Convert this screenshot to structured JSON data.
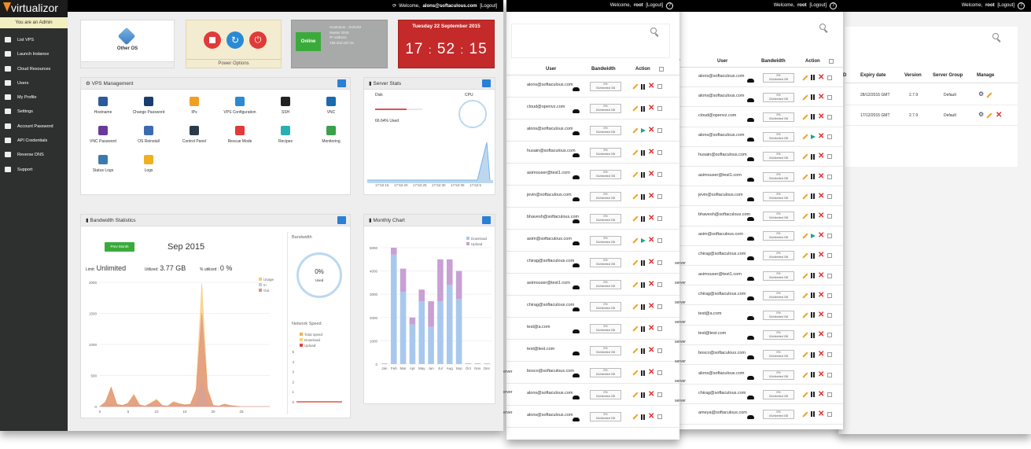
{
  "app": {
    "logo_text": "virtualizor",
    "admin_notice": "You are an Admin",
    "welcome_prefix": "Welcome,",
    "user_email": "alons@softaculous.com",
    "logout": "[Logout]",
    "root_user": "root",
    "logout_alt": "[Logout]",
    "help": "?"
  },
  "sidebar": {
    "items": [
      {
        "label": "List VPS",
        "icon": "monitor-icon"
      },
      {
        "label": "Launch Instance",
        "icon": "cloud-upload-icon"
      },
      {
        "label": "Cloud Resources",
        "icon": "bar-chart-icon"
      },
      {
        "label": "Users",
        "icon": "users-icon"
      },
      {
        "label": "My Profile",
        "icon": "profile-icon"
      },
      {
        "label": "Settings",
        "icon": "wrench-icon"
      },
      {
        "label": "Account Password",
        "icon": "lock-icon"
      },
      {
        "label": "API Credentials",
        "icon": "gears-icon"
      },
      {
        "label": "Reverse DNS",
        "icon": "gears-icon"
      },
      {
        "label": "Support",
        "icon": "question-icon"
      }
    ]
  },
  "dashboard": {
    "os_label": "Other OS",
    "power_label": "Power Options",
    "status": "Online",
    "host_info": [
      "Hostname : SoluVM",
      "Master DNS",
      "IP Address",
      "198.204.187.91"
    ],
    "clock_date": "Tuesday 22 September 2015",
    "clock_h": "17",
    "clock_m": "52",
    "clock_s": "15",
    "clock_sep": ":",
    "vps_mgmt_title": "VPS Management",
    "vps_tools": [
      {
        "label": "Hostname",
        "color": "#2a5a9a"
      },
      {
        "label": "Change Password",
        "color": "#1a3d6e"
      },
      {
        "label": "IPs",
        "color": "#f0a020"
      },
      {
        "label": "VPS Configuration",
        "color": "#2a8ad6"
      },
      {
        "label": "SSH",
        "color": "#222222"
      },
      {
        "label": "VNC",
        "color": "#1a6ab0"
      },
      {
        "label": "VNC Password",
        "color": "#6a3a9a"
      },
      {
        "label": "OS Reinstall",
        "color": "#3a6ab0"
      },
      {
        "label": "Control Panel",
        "color": "#2a3a4a"
      },
      {
        "label": "Rescue Mode",
        "color": "#e03a3a"
      },
      {
        "label": "Recipes",
        "color": "#2ab0b0"
      },
      {
        "label": "Monitoring",
        "color": "#3aa04a"
      },
      {
        "label": "Status Logs",
        "color": "#3a7ab0"
      },
      {
        "label": "Logs",
        "color": "#f0b020"
      }
    ],
    "server_stats_title": "Server Stats",
    "disk_label": "Disk",
    "cpu_label": "CPU",
    "disk_used": "66.64% Used",
    "disk_fraction": 0.6664,
    "server_times": [
      "17:52:15",
      "17:52:20",
      "17:52:25",
      "17:52:30",
      "17:52:35",
      "17:52:5"
    ],
    "bw_title": "Bandwidth Statistics",
    "bw_button": "Prev Month",
    "bw_month": "Sep 2015",
    "bw_limit_label": "Limit:",
    "bw_limit": "Unlimited",
    "bw_utilized_label": "Utilized:",
    "bw_utilized": "3.77 GB",
    "bw_pct_label": "% utilized :",
    "bw_pct": "0 %",
    "bw_side_title": "Bandwidth",
    "bw_gauge": "0%",
    "bw_gauge_sub": "Used",
    "net_speed_title": "Network Speed",
    "monthly_title": "Monthly Chart",
    "icons": {
      "expand": "expand-icon",
      "gauge": "gauge-icon"
    }
  },
  "chart_data": [
    {
      "type": "area",
      "title": "",
      "ylim": [
        0,
        2000
      ],
      "yticks": [
        "2000",
        "1500",
        "1000",
        "500",
        "0"
      ],
      "xticks": [
        "0",
        "5",
        "10",
        "15",
        "20",
        "25"
      ],
      "x": [
        0,
        1,
        2,
        3,
        4,
        5,
        6,
        7,
        8,
        9,
        10,
        11,
        12,
        13,
        14,
        15,
        16,
        17,
        18,
        19,
        20,
        21,
        22,
        23,
        24,
        25,
        26,
        27,
        28,
        29,
        30
      ],
      "legend": [
        "Usage",
        "In",
        "Out"
      ],
      "series": [
        {
          "name": "Usage",
          "color": "#f5c97a",
          "values": [
            0,
            80,
            320,
            40,
            20,
            60,
            200,
            30,
            10,
            60,
            120,
            20,
            10,
            80,
            50,
            30,
            40,
            280,
            1980,
            300,
            20,
            10,
            40,
            20,
            10,
            0,
            0,
            0,
            0,
            0,
            0
          ]
        },
        {
          "name": "In",
          "color": "#b9cde8",
          "values": [
            0,
            10,
            20,
            5,
            5,
            10,
            20,
            5,
            5,
            10,
            20,
            5,
            5,
            10,
            10,
            5,
            5,
            30,
            420,
            40,
            5,
            5,
            5,
            5,
            5,
            0,
            0,
            0,
            0,
            0,
            0
          ]
        },
        {
          "name": "Out",
          "color": "#e0917a",
          "values": [
            0,
            70,
            300,
            35,
            15,
            50,
            180,
            25,
            5,
            50,
            100,
            15,
            5,
            70,
            40,
            25,
            35,
            250,
            1500,
            260,
            15,
            5,
            35,
            15,
            5,
            0,
            0,
            0,
            0,
            0,
            0
          ]
        }
      ]
    },
    {
      "type": "line",
      "title": "",
      "ylim": [
        0,
        5
      ],
      "yticks": [
        "5",
        "4",
        "3",
        "2",
        "1",
        "0"
      ],
      "legend": [
        "Total speed",
        "Download",
        "Upload"
      ],
      "series": [
        {
          "name": "Total speed",
          "color": "#f5b04a",
          "values": [
            0,
            0,
            0,
            0
          ]
        },
        {
          "name": "Download",
          "color": "#f5d27a",
          "values": [
            0,
            0,
            0,
            0
          ]
        },
        {
          "name": "Upload",
          "color": "#d44",
          "values": [
            0,
            0,
            0,
            0
          ]
        }
      ]
    },
    {
      "type": "bar",
      "title": "",
      "categories": [
        "Jan",
        "Feb",
        "Mar",
        "Apr",
        "May",
        "Jun",
        "Jul",
        "Aug",
        "Sep",
        "Oct",
        "Nov",
        "Dec"
      ],
      "ylim": [
        0,
        5000
      ],
      "yticks": [
        "5000",
        "4000",
        "3000",
        "2000",
        "1000",
        "0"
      ],
      "legend": [
        "Download",
        "Upload"
      ],
      "series": [
        {
          "name": "Download",
          "color": "#a8c8ee",
          "values": [
            0,
            4700,
            3100,
            1700,
            2700,
            1600,
            2700,
            3400,
            2800,
            0,
            0,
            0
          ]
        },
        {
          "name": "Upload",
          "color": "#c8a0d4",
          "values": [
            0,
            300,
            1000,
            300,
            500,
            1100,
            1800,
            1100,
            1200,
            0,
            0,
            0
          ]
        }
      ]
    }
  ],
  "list1": {
    "headers": [
      "User",
      "Bandwidth",
      "Action"
    ],
    "bw_line1": "0%",
    "bw_line2": "0/Unlimited GB",
    "rows": [
      {
        "user": "alons@softaculous.com",
        "play": false
      },
      {
        "user": "cloud@openvz.com",
        "play": false
      },
      {
        "user": "alons@softaculous.com",
        "play": true
      },
      {
        "user": "husain@softaculous.com",
        "play": false
      },
      {
        "user": "asimouser@test1.com",
        "play": false
      },
      {
        "user": "jevin@softaculous.com",
        "play": false
      },
      {
        "user": "bhavesh@softaculous.com",
        "play": false
      },
      {
        "user": "asim@softaculous.com",
        "play": true
      },
      {
        "user": "chirag@softaculous.com",
        "play": false
      },
      {
        "user": "asimouser@test1.com",
        "play": false
      },
      {
        "user": "chirag@softaculous.com",
        "play": false
      },
      {
        "user": "test@a.com",
        "play": false
      },
      {
        "user": "test@test.com",
        "play": false
      },
      {
        "user": "bosco@softaculous.com",
        "play": false
      },
      {
        "user": "alons@softaculous.com",
        "play": false
      },
      {
        "user": "alons@softaculous.com",
        "play": false
      }
    ],
    "server_tags": [
      "erver",
      "erver",
      "erver"
    ]
  },
  "list2": {
    "headers": [
      "ver",
      "User",
      "Bandwidth",
      "Action"
    ],
    "rows": [
      {
        "user": "alons@softaculous.com",
        "play": false
      },
      {
        "user": "alons@softaculous.com",
        "play": false
      },
      {
        "user": "cloud@openvz.com",
        "play": false
      },
      {
        "user": "alons@softaculous.com",
        "play": true
      },
      {
        "user": "husain@softaculous.com",
        "play": false
      },
      {
        "user": "asimouser@test1.com",
        "play": false
      },
      {
        "user": "jevin@softaculous.com",
        "play": false
      },
      {
        "user": "bhavesh@softaculous.com",
        "play": false
      },
      {
        "user": "asim@softaculous.com",
        "play": true
      },
      {
        "user": "chirag@softaculous.com",
        "play": false
      },
      {
        "user": "asimouser@test1.com",
        "play": false
      },
      {
        "user": "chirag@softaculous.com",
        "play": false
      },
      {
        "user": "test@a.com",
        "play": false
      },
      {
        "user": "test@test.com",
        "play": false
      },
      {
        "user": "bosco@softaculous.com",
        "play": false
      },
      {
        "user": "alons@softaculous.com",
        "play": false
      },
      {
        "user": "chirag@softaculous.com",
        "play": false
      },
      {
        "user": "ameya@softaculous.com",
        "play": false
      },
      {
        "user": "alons@softaculous.com",
        "play": false
      }
    ],
    "server_tags": [
      "server",
      "server",
      "server",
      "server",
      "server",
      "server",
      "server",
      "server"
    ]
  },
  "license": {
    "headers": [
      "D",
      "Expiry date",
      "Version",
      "Server Group",
      "Manage"
    ],
    "rows": [
      {
        "expiry": "28/12/2015 GMT",
        "version": "2.7.9",
        "group": "Default"
      },
      {
        "expiry": "17/12/2015 GMT",
        "version": "2.7.9",
        "group": "Default"
      }
    ]
  }
}
